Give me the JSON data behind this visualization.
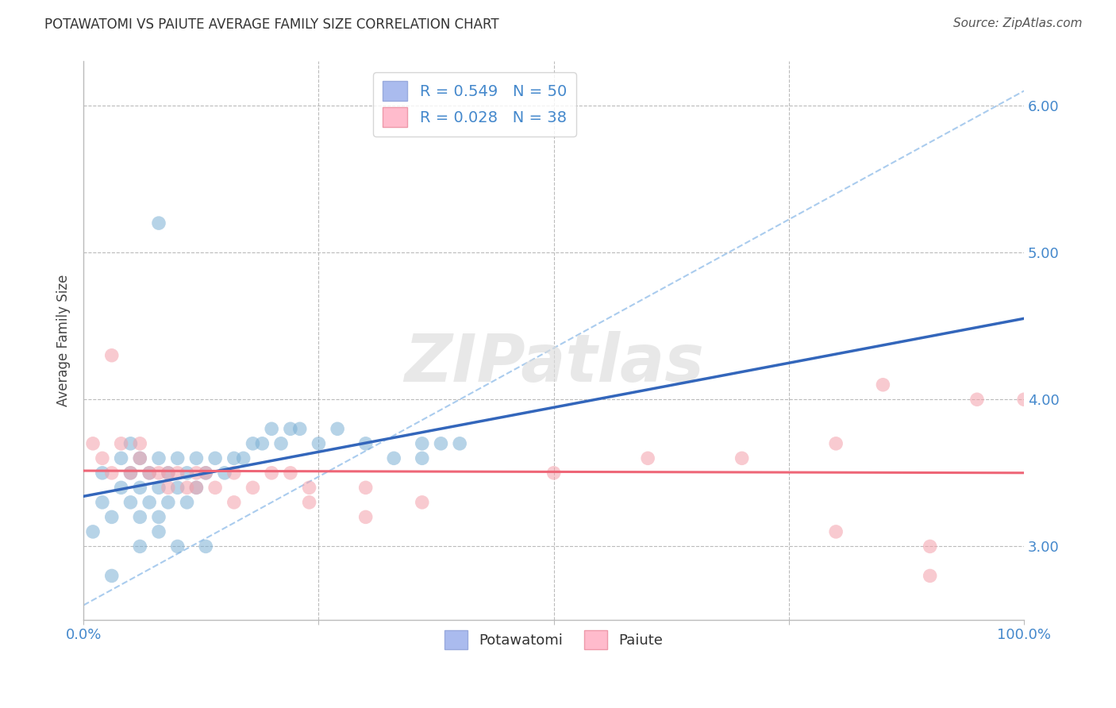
{
  "title": "POTAWATOMI VS PAIUTE AVERAGE FAMILY SIZE CORRELATION CHART",
  "source": "Source: ZipAtlas.com",
  "ylabel": "Average Family Size",
  "xlim": [
    0,
    1
  ],
  "ylim": [
    2.5,
    6.3
  ],
  "yticks": [
    3.0,
    4.0,
    5.0,
    6.0
  ],
  "xticks": [
    0.0,
    0.25,
    0.5,
    0.75,
    1.0
  ],
  "potawatomi_color": "#7BAFD4",
  "paiute_color": "#F4A0AA",
  "potawatomi_R": 0.549,
  "potawatomi_N": 50,
  "paiute_R": 0.028,
  "paiute_N": 38,
  "blue_line_color": "#3366BB",
  "pink_line_color": "#EE6677",
  "ref_line_color": "#AACCEE",
  "watermark_color": "#DDDDDD",
  "background_color": "#FFFFFF",
  "grid_color": "#BBBBBB",
  "potawatomi_x": [
    0.01,
    0.02,
    0.02,
    0.03,
    0.04,
    0.04,
    0.05,
    0.05,
    0.05,
    0.06,
    0.06,
    0.06,
    0.07,
    0.07,
    0.08,
    0.08,
    0.08,
    0.09,
    0.09,
    0.1,
    0.1,
    0.11,
    0.11,
    0.12,
    0.12,
    0.13,
    0.14,
    0.15,
    0.16,
    0.17,
    0.18,
    0.19,
    0.2,
    0.21,
    0.22,
    0.23,
    0.25,
    0.27,
    0.3,
    0.33,
    0.36,
    0.38,
    0.03,
    0.06,
    0.08,
    0.1,
    0.13,
    0.36,
    0.4,
    0.08
  ],
  "potawatomi_y": [
    3.1,
    3.3,
    3.5,
    3.2,
    3.4,
    3.6,
    3.3,
    3.5,
    3.7,
    3.2,
    3.4,
    3.6,
    3.3,
    3.5,
    3.2,
    3.4,
    3.6,
    3.3,
    3.5,
    3.4,
    3.6,
    3.3,
    3.5,
    3.4,
    3.6,
    3.5,
    3.6,
    3.5,
    3.6,
    3.6,
    3.7,
    3.7,
    3.8,
    3.7,
    3.8,
    3.8,
    3.7,
    3.8,
    3.7,
    3.6,
    3.7,
    3.7,
    2.8,
    3.0,
    3.1,
    3.0,
    3.0,
    3.6,
    3.7,
    5.2
  ],
  "paiute_x": [
    0.01,
    0.02,
    0.03,
    0.04,
    0.05,
    0.06,
    0.07,
    0.08,
    0.09,
    0.1,
    0.11,
    0.12,
    0.13,
    0.14,
    0.16,
    0.18,
    0.2,
    0.22,
    0.24,
    0.3,
    0.36,
    0.5,
    0.6,
    0.7,
    0.8,
    0.85,
    0.9,
    0.95,
    1.0,
    0.03,
    0.06,
    0.09,
    0.12,
    0.16,
    0.24,
    0.3,
    0.8,
    0.9
  ],
  "paiute_y": [
    3.7,
    3.6,
    3.5,
    3.7,
    3.5,
    3.6,
    3.5,
    3.5,
    3.4,
    3.5,
    3.4,
    3.5,
    3.5,
    3.4,
    3.5,
    3.4,
    3.5,
    3.5,
    3.4,
    3.4,
    3.3,
    3.5,
    3.6,
    3.6,
    3.1,
    4.1,
    2.8,
    4.0,
    4.0,
    4.3,
    3.7,
    3.5,
    3.4,
    3.3,
    3.3,
    3.2,
    3.7,
    3.0
  ]
}
